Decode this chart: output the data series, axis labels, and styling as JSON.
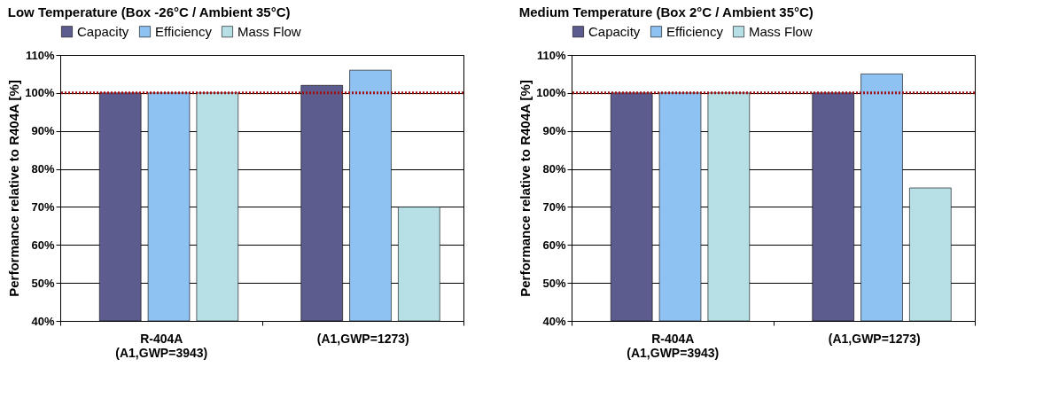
{
  "chart_data": [
    {
      "type": "bar",
      "title": "Low Temperature (Box -26°C / Ambient 35°C)",
      "ylabel": "Performance relative to R404A [%]",
      "categories": [
        "R-404A\n(A1,GWP=3943)",
        "(A1,GWP=1273)"
      ],
      "series": [
        {
          "name": "Capacity",
          "color": "#5c5c8e",
          "values": [
            100,
            102
          ]
        },
        {
          "name": "Efficiency",
          "color": "#8ec2f2",
          "values": [
            100,
            106
          ]
        },
        {
          "name": "Mass Flow",
          "color": "#b7e0e6",
          "values": [
            100,
            70
          ]
        }
      ],
      "ylim": [
        40,
        110
      ],
      "yticks": [
        {
          "value": 40,
          "label": "40%"
        },
        {
          "value": 50,
          "label": "50%"
        },
        {
          "value": 60,
          "label": "60%"
        },
        {
          "value": 70,
          "label": "70%"
        },
        {
          "value": 80,
          "label": "80%"
        },
        {
          "value": 90,
          "label": "90%"
        },
        {
          "value": 100,
          "label": "100%"
        },
        {
          "value": 110,
          "label": "110%"
        }
      ],
      "grid": "y",
      "legend": "top",
      "ref_lines": [
        {
          "axis": "y",
          "value": 100,
          "color": "#a01010",
          "line_style": "dotted"
        }
      ]
    },
    {
      "type": "bar",
      "title": "Medium Temperature (Box 2°C / Ambient 35°C)",
      "ylabel": "Performance relative to R404A [%]",
      "categories": [
        "R-404A\n(A1,GWP=3943)",
        "(A1,GWP=1273)"
      ],
      "series": [
        {
          "name": "Capacity",
          "color": "#5c5c8e",
          "values": [
            100,
            100
          ]
        },
        {
          "name": "Efficiency",
          "color": "#8ec2f2",
          "values": [
            100,
            105
          ]
        },
        {
          "name": "Mass Flow",
          "color": "#b7e0e6",
          "values": [
            100,
            75
          ]
        }
      ],
      "ylim": [
        40,
        110
      ],
      "yticks": [
        {
          "value": 40,
          "label": "40%"
        },
        {
          "value": 50,
          "label": "50%"
        },
        {
          "value": 60,
          "label": "60%"
        },
        {
          "value": 70,
          "label": "70%"
        },
        {
          "value": 80,
          "label": "80%"
        },
        {
          "value": 90,
          "label": "90%"
        },
        {
          "value": 100,
          "label": "100%"
        },
        {
          "value": 110,
          "label": "110%"
        }
      ],
      "grid": "y",
      "legend": "top",
      "ref_lines": [
        {
          "axis": "y",
          "value": 100,
          "color": "#a01010",
          "line_style": "dotted"
        }
      ]
    }
  ]
}
